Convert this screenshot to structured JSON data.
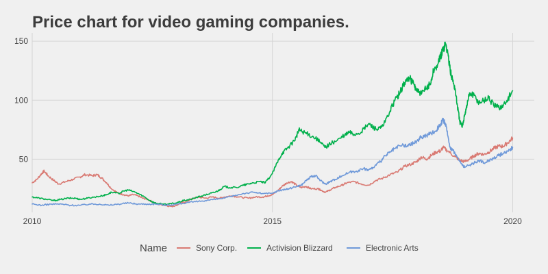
{
  "chart_data": {
    "type": "line",
    "title": "Price chart for video gaming companies.",
    "xlabel": "",
    "ylabel": "",
    "xlim": [
      2010.0,
      2020.45
    ],
    "ylim": [
      5,
      157
    ],
    "x_ticks": [
      2010,
      2015,
      2020
    ],
    "x_tick_labels": [
      "2010",
      "2015",
      "2020"
    ],
    "y_ticks": [
      50,
      100,
      150
    ],
    "y_tick_labels": [
      "50",
      "100",
      "150"
    ],
    "grid": true,
    "legend_title": "Name",
    "legend_position": "bottom",
    "series": [
      {
        "name": "Sony Corp.",
        "color": "#d97a73",
        "points": [
          [
            2010.0,
            30
          ],
          [
            2010.1,
            33
          ],
          [
            2010.2,
            38
          ],
          [
            2010.25,
            40
          ],
          [
            2010.33,
            36
          ],
          [
            2010.45,
            32
          ],
          [
            2010.55,
            29
          ],
          [
            2010.7,
            31
          ],
          [
            2010.85,
            33
          ],
          [
            2011.0,
            35
          ],
          [
            2011.1,
            37
          ],
          [
            2011.25,
            36
          ],
          [
            2011.35,
            37
          ],
          [
            2011.45,
            34
          ],
          [
            2011.55,
            30
          ],
          [
            2011.65,
            25
          ],
          [
            2011.8,
            21
          ],
          [
            2011.9,
            20
          ],
          [
            2012.0,
            19
          ],
          [
            2012.1,
            20
          ],
          [
            2012.2,
            19
          ],
          [
            2012.3,
            17
          ],
          [
            2012.4,
            16
          ],
          [
            2012.5,
            14
          ],
          [
            2012.6,
            12
          ],
          [
            2012.75,
            11
          ],
          [
            2012.9,
            10
          ],
          [
            2013.0,
            11
          ],
          [
            2013.1,
            13
          ],
          [
            2013.2,
            14
          ],
          [
            2013.3,
            16
          ],
          [
            2013.45,
            18
          ],
          [
            2013.6,
            17
          ],
          [
            2013.75,
            18
          ],
          [
            2013.9,
            17
          ],
          [
            2014.0,
            18
          ],
          [
            2014.15,
            19
          ],
          [
            2014.3,
            18
          ],
          [
            2014.5,
            17
          ],
          [
            2014.65,
            18
          ],
          [
            2014.8,
            18
          ],
          [
            2014.9,
            19
          ],
          [
            2015.0,
            20
          ],
          [
            2015.1,
            23
          ],
          [
            2015.2,
            27
          ],
          [
            2015.3,
            30
          ],
          [
            2015.4,
            31
          ],
          [
            2015.5,
            28
          ],
          [
            2015.6,
            26
          ],
          [
            2015.7,
            27
          ],
          [
            2015.8,
            25
          ],
          [
            2015.95,
            25
          ],
          [
            2016.0,
            24
          ],
          [
            2016.1,
            22
          ],
          [
            2016.2,
            24
          ],
          [
            2016.3,
            26
          ],
          [
            2016.45,
            28
          ],
          [
            2016.55,
            30
          ],
          [
            2016.7,
            31
          ],
          [
            2016.85,
            29
          ],
          [
            2017.0,
            28
          ],
          [
            2017.15,
            32
          ],
          [
            2017.3,
            34
          ],
          [
            2017.45,
            37
          ],
          [
            2017.6,
            39
          ],
          [
            2017.75,
            44
          ],
          [
            2017.9,
            46
          ],
          [
            2018.0,
            48
          ],
          [
            2018.1,
            52
          ],
          [
            2018.2,
            50
          ],
          [
            2018.3,
            53
          ],
          [
            2018.4,
            56
          ],
          [
            2018.5,
            57
          ],
          [
            2018.55,
            60
          ],
          [
            2018.65,
            57
          ],
          [
            2018.8,
            52
          ],
          [
            2018.9,
            49
          ],
          [
            2019.0,
            48
          ],
          [
            2019.1,
            50
          ],
          [
            2019.2,
            53
          ],
          [
            2019.3,
            55
          ],
          [
            2019.4,
            54
          ],
          [
            2019.5,
            56
          ],
          [
            2019.6,
            59
          ],
          [
            2019.7,
            61
          ],
          [
            2019.8,
            61
          ],
          [
            2019.9,
            64
          ],
          [
            2020.0,
            68
          ]
        ]
      },
      {
        "name": "Activision Blizzard",
        "color": "#00b04b",
        "points": [
          [
            2010.0,
            18
          ],
          [
            2010.15,
            17
          ],
          [
            2010.3,
            16
          ],
          [
            2010.45,
            15
          ],
          [
            2010.6,
            16
          ],
          [
            2010.75,
            17
          ],
          [
            2010.9,
            17
          ],
          [
            2011.0,
            16
          ],
          [
            2011.15,
            17
          ],
          [
            2011.3,
            18
          ],
          [
            2011.45,
            19
          ],
          [
            2011.55,
            20
          ],
          [
            2011.65,
            22
          ],
          [
            2011.8,
            21
          ],
          [
            2011.9,
            23
          ],
          [
            2012.0,
            24
          ],
          [
            2012.15,
            22
          ],
          [
            2012.3,
            19
          ],
          [
            2012.45,
            15
          ],
          [
            2012.55,
            13
          ],
          [
            2012.7,
            12
          ],
          [
            2012.85,
            12
          ],
          [
            2013.0,
            13
          ],
          [
            2013.15,
            15
          ],
          [
            2013.3,
            16
          ],
          [
            2013.45,
            18
          ],
          [
            2013.55,
            19
          ],
          [
            2013.7,
            21
          ],
          [
            2013.8,
            22
          ],
          [
            2013.9,
            24
          ],
          [
            2014.0,
            27
          ],
          [
            2014.1,
            26
          ],
          [
            2014.25,
            26
          ],
          [
            2014.4,
            28
          ],
          [
            2014.5,
            29
          ],
          [
            2014.6,
            30
          ],
          [
            2014.75,
            31
          ],
          [
            2014.85,
            30
          ],
          [
            2015.0,
            38
          ],
          [
            2015.1,
            47
          ],
          [
            2015.2,
            55
          ],
          [
            2015.3,
            59
          ],
          [
            2015.4,
            63
          ],
          [
            2015.5,
            69
          ],
          [
            2015.55,
            75
          ],
          [
            2015.65,
            73
          ],
          [
            2015.75,
            71
          ],
          [
            2015.9,
            68
          ],
          [
            2016.0,
            64
          ],
          [
            2016.1,
            60
          ],
          [
            2016.2,
            63
          ],
          [
            2016.35,
            66
          ],
          [
            2016.5,
            70
          ],
          [
            2016.6,
            73
          ],
          [
            2016.7,
            71
          ],
          [
            2016.85,
            73
          ],
          [
            2017.0,
            80
          ],
          [
            2017.1,
            77
          ],
          [
            2017.2,
            75
          ],
          [
            2017.3,
            78
          ],
          [
            2017.45,
            91
          ],
          [
            2017.55,
            100
          ],
          [
            2017.65,
            106
          ],
          [
            2017.75,
            115
          ],
          [
            2017.85,
            119
          ],
          [
            2017.95,
            113
          ],
          [
            2018.0,
            108
          ],
          [
            2018.1,
            105
          ],
          [
            2018.2,
            110
          ],
          [
            2018.3,
            115
          ],
          [
            2018.35,
            125
          ],
          [
            2018.45,
            131
          ],
          [
            2018.5,
            137
          ],
          [
            2018.55,
            143
          ],
          [
            2018.6,
            148
          ],
          [
            2018.65,
            140
          ],
          [
            2018.7,
            125
          ],
          [
            2018.75,
            117
          ],
          [
            2018.8,
            110
          ],
          [
            2018.85,
            95
          ],
          [
            2018.9,
            82
          ],
          [
            2018.95,
            77
          ],
          [
            2019.0,
            88
          ],
          [
            2019.05,
            96
          ],
          [
            2019.1,
            106
          ],
          [
            2019.2,
            104
          ],
          [
            2019.3,
            98
          ],
          [
            2019.4,
            100
          ],
          [
            2019.5,
            102
          ],
          [
            2019.6,
            96
          ],
          [
            2019.7,
            94
          ],
          [
            2019.8,
            95
          ],
          [
            2019.9,
            101
          ],
          [
            2020.0,
            108
          ]
        ]
      },
      {
        "name": "Electronic Arts",
        "color": "#6f99d9",
        "points": [
          [
            2010.0,
            12
          ],
          [
            2010.2,
            11
          ],
          [
            2010.4,
            12
          ],
          [
            2010.6,
            12
          ],
          [
            2010.8,
            11
          ],
          [
            2011.0,
            11
          ],
          [
            2011.2,
            12
          ],
          [
            2011.4,
            12
          ],
          [
            2011.6,
            11
          ],
          [
            2011.8,
            12
          ],
          [
            2012.0,
            13
          ],
          [
            2012.2,
            12
          ],
          [
            2012.4,
            12
          ],
          [
            2012.6,
            12
          ],
          [
            2012.8,
            11
          ],
          [
            2013.0,
            12
          ],
          [
            2013.2,
            13
          ],
          [
            2013.4,
            14
          ],
          [
            2013.6,
            15
          ],
          [
            2013.8,
            16
          ],
          [
            2014.0,
            17
          ],
          [
            2014.2,
            19
          ],
          [
            2014.4,
            21
          ],
          [
            2014.6,
            22
          ],
          [
            2014.8,
            21
          ],
          [
            2015.0,
            21
          ],
          [
            2015.1,
            23
          ],
          [
            2015.2,
            24
          ],
          [
            2015.35,
            25
          ],
          [
            2015.5,
            27
          ],
          [
            2015.6,
            28
          ],
          [
            2015.7,
            32
          ],
          [
            2015.8,
            35
          ],
          [
            2015.9,
            36
          ],
          [
            2016.0,
            32
          ],
          [
            2016.1,
            29
          ],
          [
            2016.2,
            31
          ],
          [
            2016.3,
            33
          ],
          [
            2016.45,
            36
          ],
          [
            2016.6,
            39
          ],
          [
            2016.75,
            40
          ],
          [
            2016.9,
            42
          ],
          [
            2017.0,
            41
          ],
          [
            2017.1,
            43
          ],
          [
            2017.25,
            48
          ],
          [
            2017.35,
            53
          ],
          [
            2017.45,
            56
          ],
          [
            2017.55,
            59
          ],
          [
            2017.7,
            62
          ],
          [
            2017.8,
            61
          ],
          [
            2017.9,
            63
          ],
          [
            2018.0,
            65
          ],
          [
            2018.1,
            69
          ],
          [
            2018.2,
            70
          ],
          [
            2018.3,
            72
          ],
          [
            2018.4,
            74
          ],
          [
            2018.5,
            80
          ],
          [
            2018.55,
            83
          ],
          [
            2018.6,
            80
          ],
          [
            2018.65,
            70
          ],
          [
            2018.7,
            60
          ],
          [
            2018.8,
            55
          ],
          [
            2018.9,
            48
          ],
          [
            2019.0,
            43
          ],
          [
            2019.1,
            45
          ],
          [
            2019.2,
            47
          ],
          [
            2019.3,
            49
          ],
          [
            2019.4,
            47
          ],
          [
            2019.5,
            49
          ],
          [
            2019.6,
            51
          ],
          [
            2019.7,
            53
          ],
          [
            2019.8,
            55
          ],
          [
            2019.9,
            57
          ],
          [
            2020.0,
            60
          ]
        ]
      }
    ]
  }
}
